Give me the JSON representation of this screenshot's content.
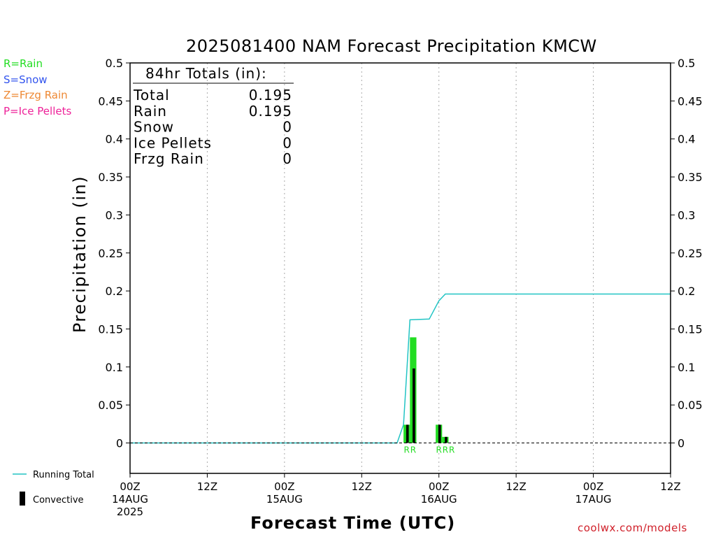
{
  "chart_data": {
    "type": "bar",
    "title": "2025081400 NAM Forecast Precipitation KMCW",
    "xlabel": "Forecast Time (UTC)",
    "ylabel": "Precipitation (in)",
    "ylim": [
      -0.04,
      0.5
    ],
    "yticks": [
      "0",
      "0.05",
      "0.1",
      "0.15",
      "0.2",
      "0.25",
      "0.3",
      "0.35",
      "0.4",
      "0.45",
      "0.5"
    ],
    "ytick_values": [
      0,
      0.05,
      0.1,
      0.15,
      0.2,
      0.25,
      0.3,
      0.35,
      0.4,
      0.45,
      0.5
    ],
    "x_unit": "forecast hour",
    "xlim": [
      0,
      84
    ],
    "xticks": [
      {
        "hour": 0,
        "line1": "00Z",
        "line2": "14AUG",
        "line3": "2025"
      },
      {
        "hour": 12,
        "line1": "12Z",
        "line2": "",
        "line3": ""
      },
      {
        "hour": 24,
        "line1": "00Z",
        "line2": "15AUG",
        "line3": ""
      },
      {
        "hour": 36,
        "line1": "12Z",
        "line2": "",
        "line3": ""
      },
      {
        "hour": 48,
        "line1": "00Z",
        "line2": "16AUG",
        "line3": ""
      },
      {
        "hour": 60,
        "line1": "12Z",
        "line2": "",
        "line3": ""
      },
      {
        "hour": 72,
        "line1": "00Z",
        "line2": "17AUG",
        "line3": ""
      },
      {
        "hour": 84,
        "line1": "12Z",
        "line2": "",
        "line3": ""
      }
    ],
    "grid": true,
    "precip_bars": [
      {
        "hour": 43,
        "value": 0.024,
        "convective": 0.024,
        "type_label": "R"
      },
      {
        "hour": 44,
        "value": 0.139,
        "convective": 0.098,
        "type_label": "R"
      },
      {
        "hour": 48,
        "value": 0.024,
        "convective": 0.024,
        "type_label": "R"
      },
      {
        "hour": 49,
        "value": 0.008,
        "convective": 0.008,
        "type_label": "R"
      },
      {
        "hour": 50,
        "value": 0.0,
        "convective": 0.0,
        "type_label": "R"
      }
    ],
    "running_total": [
      [
        0,
        0
      ],
      [
        41.5,
        0
      ],
      [
        42.5,
        0.024
      ],
      [
        43.5,
        0.162
      ],
      [
        46.5,
        0.163
      ],
      [
        48,
        0.187
      ],
      [
        49,
        0.196
      ],
      [
        84,
        0.196
      ]
    ],
    "totals": {
      "header": "84hr Totals (in):",
      "rows": [
        {
          "label": "Total",
          "value": "0.195"
        },
        {
          "label": "Rain",
          "value": "0.195"
        },
        {
          "label": "Snow",
          "value": "0"
        },
        {
          "label": "Ice Pellets",
          "value": "0"
        },
        {
          "label": "Frzg Rain",
          "value": "0"
        }
      ]
    },
    "precip_type_legend": [
      {
        "text": "R=Rain",
        "color": "#22dd22"
      },
      {
        "text": "S=Snow",
        "color": "#3355ee"
      },
      {
        "text": "Z=Frzg Rain",
        "color": "#ee8833"
      },
      {
        "text": "P=Ice Pellets",
        "color": "#ee2299"
      }
    ],
    "series_legend": {
      "running_total_label": "Running Total",
      "convective_label": "Convective"
    },
    "colors": {
      "rain_bar": "#22dd22",
      "convective_bar": "#000000",
      "running_total": "#22c4c4",
      "zero_line": "#000000",
      "grid": "#aaaaaa"
    }
  },
  "credit": "coolwx.com/models"
}
